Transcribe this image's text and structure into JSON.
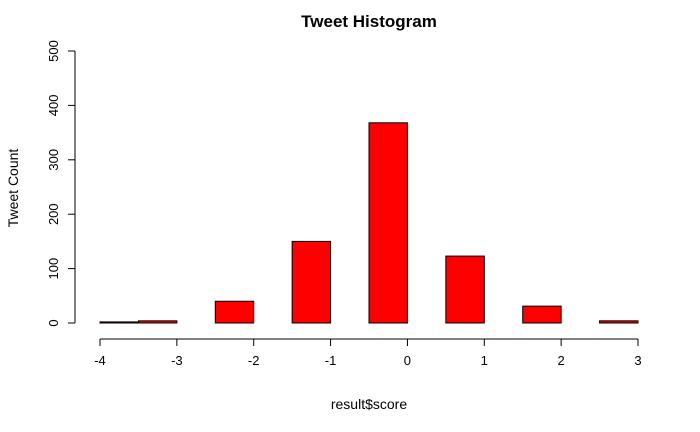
{
  "chart_data": {
    "type": "bar",
    "title": "Tweet Histogram",
    "xlabel": "result$score",
    "ylabel": "Tweet Count",
    "bar_color": "#ff0000",
    "x_ticks": [
      -4,
      -3,
      -2,
      -1,
      0,
      1,
      2,
      3
    ],
    "y_ticks": [
      0,
      100,
      200,
      300,
      400,
      500
    ],
    "xlim": [
      -4,
      3
    ],
    "ylim": [
      0,
      500
    ],
    "bins": [
      {
        "x0": -4.0,
        "x1": -3.5,
        "value": 2
      },
      {
        "x0": -3.5,
        "x1": -3.0,
        "value": 4
      },
      {
        "x0": -2.5,
        "x1": -2.0,
        "value": 40
      },
      {
        "x0": -1.5,
        "x1": -1.0,
        "value": 150
      },
      {
        "x0": -0.5,
        "x1": 0.0,
        "value": 368
      },
      {
        "x0": 0.5,
        "x1": 1.0,
        "value": 123
      },
      {
        "x0": 1.5,
        "x1": 2.0,
        "value": 31
      },
      {
        "x0": 2.5,
        "x1": 3.0,
        "value": 4
      }
    ]
  }
}
